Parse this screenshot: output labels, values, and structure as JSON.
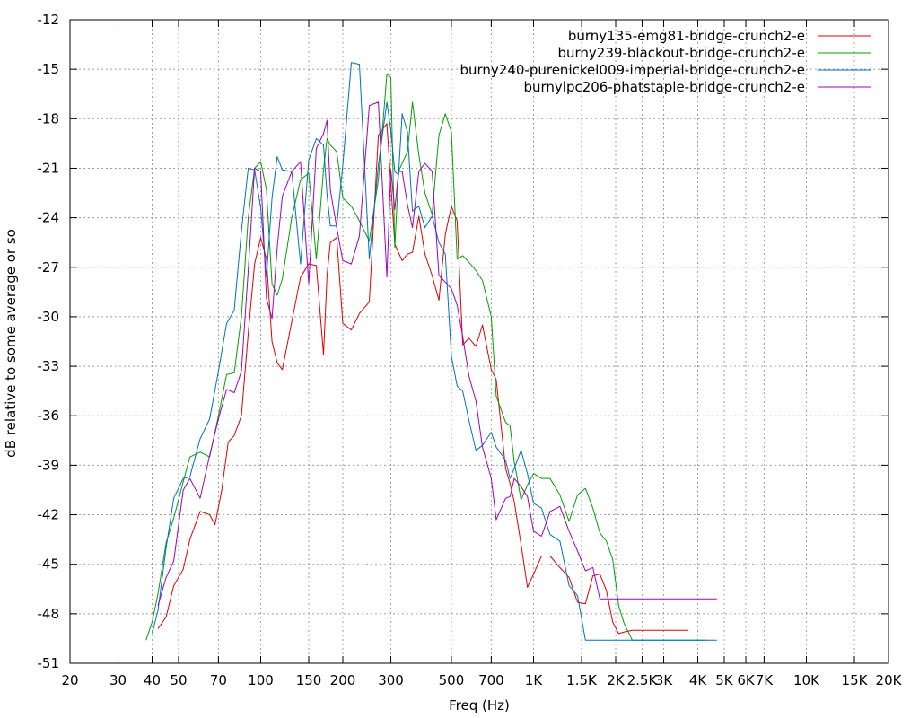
{
  "chart_data": {
    "type": "line",
    "xlabel": "Freq (Hz)",
    "ylabel": "dB relative to some average or so",
    "x_scale": "log",
    "xlim": [
      20,
      20000
    ],
    "ylim": [
      -51,
      -12
    ],
    "grid": true,
    "legend_position": "top-right",
    "y_ticks": [
      -12,
      -15,
      -18,
      -21,
      -24,
      -27,
      -30,
      -33,
      -36,
      -39,
      -42,
      -45,
      -48,
      -51
    ],
    "x_ticks": [
      {
        "value": 20,
        "label": "20"
      },
      {
        "value": 30,
        "label": "30"
      },
      {
        "value": 40,
        "label": "40"
      },
      {
        "value": 50,
        "label": "50"
      },
      {
        "value": 70,
        "label": "70"
      },
      {
        "value": 100,
        "label": "100"
      },
      {
        "value": 150,
        "label": "150"
      },
      {
        "value": 200,
        "label": "200"
      },
      {
        "value": 300,
        "label": "300"
      },
      {
        "value": 500,
        "label": "500"
      },
      {
        "value": 700,
        "label": "700"
      },
      {
        "value": 1000,
        "label": "1K"
      },
      {
        "value": 1500,
        "label": "1.5K"
      },
      {
        "value": 2000,
        "label": "2K"
      },
      {
        "value": 2500,
        "label": "2.5K"
      },
      {
        "value": 3000,
        "label": "3K"
      },
      {
        "value": 4000,
        "label": "4K"
      },
      {
        "value": 5000,
        "label": "5K"
      },
      {
        "value": 6000,
        "label": "6K"
      },
      {
        "value": 7000,
        "label": "7K"
      },
      {
        "value": 10000,
        "label": "10K"
      },
      {
        "value": 15000,
        "label": "15K"
      },
      {
        "value": 20000,
        "label": "20K"
      }
    ],
    "series": [
      {
        "name": "burny135-emg81-bridge-crunch2-e",
        "color": "#e00000",
        "x": [
          42,
          45,
          48,
          52,
          55,
          60,
          65,
          68,
          72,
          76,
          80,
          85,
          90,
          95,
          100,
          105,
          110,
          115,
          120,
          130,
          140,
          150,
          160,
          170,
          175,
          180,
          190,
          200,
          215,
          230,
          250,
          270,
          290,
          310,
          330,
          345,
          360,
          380,
          400,
          425,
          450,
          475,
          500,
          525,
          550,
          580,
          615,
          650,
          700,
          730,
          790,
          820,
          850,
          900,
          950,
          1000,
          1070,
          1150,
          1250,
          1350,
          1450,
          1550,
          1650,
          1750,
          1850,
          1950,
          2050,
          2150,
          2300,
          2450,
          2600,
          2800,
          3000,
          3200,
          3400,
          3700
        ],
        "y": [
          -48.9,
          -48.2,
          -46.3,
          -45.3,
          -43.5,
          -41.8,
          -42,
          -42.6,
          -40.5,
          -37.6,
          -37.2,
          -36,
          -31,
          -26.8,
          -25.2,
          -26.5,
          -31.5,
          -32.8,
          -33.2,
          -30.3,
          -27.6,
          -26.8,
          -26.9,
          -32.3,
          -27.5,
          -25.5,
          -25.2,
          -30.4,
          -30.8,
          -29.8,
          -29.1,
          -19,
          -18.3,
          -25.6,
          -26.6,
          -26.2,
          -26.1,
          -23.9,
          -26.2,
          -27.5,
          -29,
          -25,
          -23.3,
          -24.2,
          -31.7,
          -31.3,
          -31.8,
          -30.5,
          -33.2,
          -33.8,
          -39.2,
          -40.1,
          -41.2,
          -43.8,
          -46.4,
          -45.6,
          -44.5,
          -44.5,
          -45.2,
          -45.8,
          -47.3,
          -47.4,
          -45.7,
          -45.6,
          -46.6,
          -48.5,
          -49.2,
          -49.1,
          -49.0,
          -49.0,
          -49.0,
          -49.0,
          -49.0,
          -49.0,
          -49.0,
          -49.0
        ]
      },
      {
        "name": "burny239-blackout-bridge-crunch2-e",
        "color": "#00a000",
        "x": [
          38,
          40,
          42,
          45,
          48,
          52,
          55,
          60,
          65,
          70,
          75,
          80,
          85,
          90,
          95,
          100,
          105,
          110,
          115,
          120,
          130,
          140,
          150,
          160,
          170,
          175,
          180,
          190,
          200,
          215,
          230,
          250,
          270,
          290,
          300,
          310,
          320,
          330,
          345,
          360,
          380,
          400,
          425,
          450,
          475,
          500,
          525,
          550,
          580,
          615,
          650,
          700,
          730,
          790,
          820,
          850,
          900,
          950,
          1000,
          1070,
          1150,
          1250,
          1350,
          1450,
          1550,
          1650,
          1750,
          1850,
          1950,
          2050,
          2150,
          2300,
          2450,
          2600,
          2800,
          3000,
          3200,
          3400,
          3700,
          4000,
          4300
        ],
        "y": [
          -49.6,
          -48.5,
          -46.8,
          -43.7,
          -42.2,
          -40,
          -38.5,
          -38.2,
          -38.5,
          -36,
          -33.5,
          -33.4,
          -30,
          -24,
          -21,
          -20.6,
          -22.3,
          -28,
          -28.7,
          -27.7,
          -24,
          -21.7,
          -21.3,
          -26.5,
          -21.1,
          -19.2,
          -19.6,
          -20,
          -22.8,
          -23.3,
          -24.2,
          -25.4,
          -21.7,
          -15.3,
          -15.5,
          -25.8,
          -21.2,
          -20.7,
          -20,
          -17,
          -20.2,
          -22.5,
          -23.8,
          -19,
          -17.7,
          -18.8,
          -26.5,
          -26.3,
          -26.7,
          -27.2,
          -27.8,
          -30,
          -34.8,
          -36.4,
          -36.6,
          -38.8,
          -41.1,
          -40.2,
          -39.5,
          -39.8,
          -39.8,
          -40.8,
          -42.4,
          -40.8,
          -40.4,
          -41.6,
          -43.1,
          -43.6,
          -44.7,
          -47.5,
          -48.6,
          -49.6,
          -49.6,
          -49.6,
          -49.6,
          -49.6,
          -49.6,
          -49.6,
          -49.6,
          -49.6,
          -49.6
        ]
      },
      {
        "name": "burny240-purenickel009-imperial-bridge-crunch2-e",
        "color": "#0070c0",
        "x": [
          40,
          42,
          45,
          48,
          52,
          55,
          60,
          65,
          70,
          75,
          80,
          85,
          90,
          95,
          100,
          105,
          110,
          115,
          120,
          130,
          140,
          150,
          160,
          170,
          175,
          180,
          190,
          200,
          215,
          230,
          250,
          270,
          290,
          300,
          310,
          320,
          330,
          345,
          360,
          380,
          400,
          425,
          450,
          475,
          500,
          525,
          550,
          580,
          615,
          650,
          700,
          730,
          790,
          820,
          850,
          900,
          950,
          1000,
          1070,
          1150,
          1250,
          1350,
          1450,
          1550,
          1650,
          1750,
          1850,
          1950,
          2050,
          2150,
          2300,
          2450,
          2600,
          2800,
          3000,
          3200,
          3400,
          3700,
          4000,
          4300,
          4700
        ],
        "y": [
          -49.2,
          -47.8,
          -44,
          -41,
          -39.8,
          -39.7,
          -37.4,
          -36.2,
          -33.3,
          -30.4,
          -29.6,
          -24.8,
          -21,
          -21.1,
          -23.4,
          -27.6,
          -22.8,
          -20.3,
          -21.1,
          -21.2,
          -26.8,
          -20.5,
          -19.2,
          -19.6,
          -22.6,
          -24.5,
          -24.5,
          -20.8,
          -14.6,
          -14.7,
          -26.5,
          -20.8,
          -17,
          -18.7,
          -21.2,
          -21.4,
          -17.7,
          -18.8,
          -23.6,
          -23.3,
          -24.6,
          -23.9,
          -25.5,
          -26.2,
          -32.4,
          -34.2,
          -34.5,
          -36.3,
          -38.1,
          -37.8,
          -37,
          -37.9,
          -38.7,
          -39.8,
          -39.2,
          -38.1,
          -39.5,
          -41.3,
          -41.6,
          -43.2,
          -43.6,
          -46.3,
          -46.9,
          -49.6,
          -49.6,
          -49.6,
          -49.6,
          -49.6,
          -49.6,
          -49.6,
          -49.6,
          -49.6,
          -49.6,
          -49.6,
          -49.6,
          -49.6,
          -49.6,
          -49.6,
          -49.6,
          -49.6,
          -49.6
        ]
      },
      {
        "name": "burnylpc206-phatstaple-bridge-crunch2-e",
        "color": "#a000c0",
        "x": [
          42,
          45,
          48,
          52,
          55,
          60,
          65,
          70,
          75,
          80,
          85,
          90,
          95,
          100,
          105,
          110,
          115,
          120,
          130,
          140,
          150,
          160,
          170,
          175,
          180,
          190,
          200,
          215,
          230,
          250,
          270,
          290,
          300,
          310,
          320,
          330,
          345,
          360,
          380,
          400,
          425,
          450,
          475,
          500,
          525,
          550,
          580,
          615,
          650,
          700,
          730,
          790,
          820,
          850,
          900,
          950,
          1000,
          1070,
          1150,
          1250,
          1350,
          1450,
          1550,
          1650,
          1750,
          1850,
          1950,
          2050,
          2150,
          2300,
          2450,
          2600,
          2800,
          3000,
          3200,
          3400,
          3700,
          4000,
          4300,
          4700
        ],
        "y": [
          -47.5,
          -45.8,
          -44.8,
          -40.5,
          -39.8,
          -41,
          -38.4,
          -36.2,
          -34.4,
          -34.6,
          -33.3,
          -27.2,
          -21,
          -21.2,
          -28.9,
          -30.1,
          -25.8,
          -22.7,
          -21.2,
          -20.6,
          -28,
          -19.8,
          -18.9,
          -18.1,
          -22.3,
          -24.6,
          -26.6,
          -26.8,
          -25.1,
          -17.2,
          -17,
          -27.6,
          -21.1,
          -23.5,
          -21.2,
          -21.2,
          -23.2,
          -24.6,
          -21.2,
          -20.7,
          -21.2,
          -27.5,
          -27.9,
          -28.3,
          -29.3,
          -31.2,
          -33.6,
          -35.1,
          -37.9,
          -39.8,
          -42.3,
          -41,
          -40.9,
          -39.8,
          -40.3,
          -40.9,
          -43,
          -43.3,
          -41.8,
          -41.5,
          -43,
          -44.2,
          -45.4,
          -45.2,
          -47.1,
          -47.1,
          -47.1,
          -47.1,
          -47.1,
          -47.1,
          -47.1,
          -47.1,
          -47.1,
          -47.1,
          -47.1,
          -47.1,
          -47.1,
          -47.1,
          -47.1,
          -47.1
        ]
      }
    ]
  }
}
